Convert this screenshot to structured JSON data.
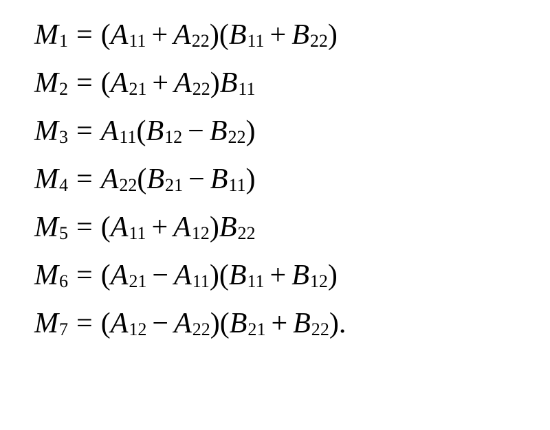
{
  "equations": [
    {
      "lhs": {
        "var": "M",
        "sub": "1"
      },
      "rhs": [
        {
          "type": "paren_open"
        },
        {
          "type": "term",
          "var": "A",
          "sub": "11"
        },
        {
          "type": "op",
          "symbol": "+"
        },
        {
          "type": "term",
          "var": "A",
          "sub": "22"
        },
        {
          "type": "paren_close"
        },
        {
          "type": "paren_open"
        },
        {
          "type": "term",
          "var": "B",
          "sub": "11"
        },
        {
          "type": "op",
          "symbol": "+"
        },
        {
          "type": "term",
          "var": "B",
          "sub": "22"
        },
        {
          "type": "paren_close"
        }
      ],
      "terminal": ""
    },
    {
      "lhs": {
        "var": "M",
        "sub": "2"
      },
      "rhs": [
        {
          "type": "paren_open"
        },
        {
          "type": "term",
          "var": "A",
          "sub": "21"
        },
        {
          "type": "op",
          "symbol": "+"
        },
        {
          "type": "term",
          "var": "A",
          "sub": "22"
        },
        {
          "type": "paren_close"
        },
        {
          "type": "term",
          "var": "B",
          "sub": "11"
        }
      ],
      "terminal": ""
    },
    {
      "lhs": {
        "var": "M",
        "sub": "3"
      },
      "rhs": [
        {
          "type": "term",
          "var": "A",
          "sub": "11"
        },
        {
          "type": "paren_open"
        },
        {
          "type": "term",
          "var": "B",
          "sub": "12"
        },
        {
          "type": "op",
          "symbol": "−"
        },
        {
          "type": "term",
          "var": "B",
          "sub": "22"
        },
        {
          "type": "paren_close"
        }
      ],
      "terminal": ""
    },
    {
      "lhs": {
        "var": "M",
        "sub": "4"
      },
      "rhs": [
        {
          "type": "term",
          "var": "A",
          "sub": "22"
        },
        {
          "type": "paren_open"
        },
        {
          "type": "term",
          "var": "B",
          "sub": "21"
        },
        {
          "type": "op",
          "symbol": "−"
        },
        {
          "type": "term",
          "var": "B",
          "sub": "11"
        },
        {
          "type": "paren_close"
        }
      ],
      "terminal": ""
    },
    {
      "lhs": {
        "var": "M",
        "sub": "5"
      },
      "rhs": [
        {
          "type": "paren_open"
        },
        {
          "type": "term",
          "var": "A",
          "sub": "11"
        },
        {
          "type": "op",
          "symbol": "+"
        },
        {
          "type": "term",
          "var": "A",
          "sub": "12"
        },
        {
          "type": "paren_close"
        },
        {
          "type": "term",
          "var": "B",
          "sub": "22"
        }
      ],
      "terminal": ""
    },
    {
      "lhs": {
        "var": "M",
        "sub": "6"
      },
      "rhs": [
        {
          "type": "paren_open"
        },
        {
          "type": "term",
          "var": "A",
          "sub": "21"
        },
        {
          "type": "op",
          "symbol": "−"
        },
        {
          "type": "term",
          "var": "A",
          "sub": "11"
        },
        {
          "type": "paren_close"
        },
        {
          "type": "paren_open"
        },
        {
          "type": "term",
          "var": "B",
          "sub": "11"
        },
        {
          "type": "op",
          "symbol": "+"
        },
        {
          "type": "term",
          "var": "B",
          "sub": "12"
        },
        {
          "type": "paren_close"
        }
      ],
      "terminal": ""
    },
    {
      "lhs": {
        "var": "M",
        "sub": "7"
      },
      "rhs": [
        {
          "type": "paren_open"
        },
        {
          "type": "term",
          "var": "A",
          "sub": "12"
        },
        {
          "type": "op",
          "symbol": "−"
        },
        {
          "type": "term",
          "var": "A",
          "sub": "22"
        },
        {
          "type": "paren_close"
        },
        {
          "type": "paren_open"
        },
        {
          "type": "term",
          "var": "B",
          "sub": "21"
        },
        {
          "type": "op",
          "symbol": "+"
        },
        {
          "type": "term",
          "var": "B",
          "sub": "22"
        },
        {
          "type": "paren_close"
        }
      ],
      "terminal": "."
    }
  ],
  "styling": {
    "font_family": "Palatino, Times New Roman, serif",
    "font_size_main": 42,
    "font_size_sub_ratio": 0.62,
    "font_style": "italic",
    "text_color": "#000000",
    "background_color": "#ffffff",
    "line_gap": 28,
    "eq_symbol": "=",
    "paren_open": "(",
    "paren_close": ")"
  }
}
